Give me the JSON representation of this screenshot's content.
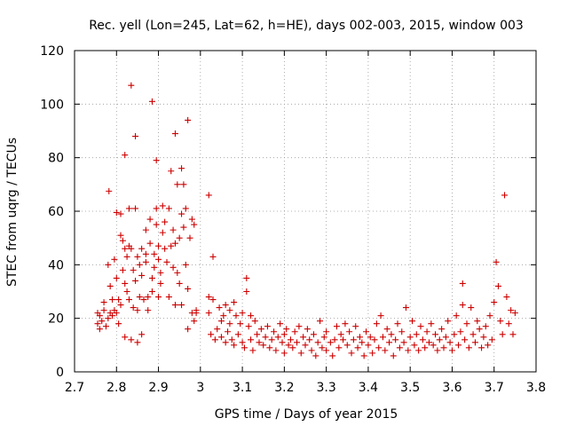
{
  "chart_data": {
    "type": "scatter",
    "title": "Rec. yell (Lon=245, Lat=62, h=HE), days 002-003, 2015, window 003",
    "xlabel": "GPS time / Days of year 2015",
    "ylabel": "STEC from uqrg / TECUs",
    "xlim": [
      2.7,
      3.8
    ],
    "ylim": [
      0,
      120
    ],
    "x_ticks": [
      "2.7",
      "2.8",
      "2.9",
      "3",
      "3.1",
      "3.2",
      "3.3",
      "3.4",
      "3.5",
      "3.6",
      "3.7",
      "3.8"
    ],
    "y_ticks": [
      "0",
      "20",
      "40",
      "60",
      "80",
      "100",
      "120"
    ],
    "grid": true,
    "marker": "+",
    "color": "#cc0000",
    "series": [
      {
        "points": [
          [
            2.755,
            22
          ],
          [
            2.755,
            18
          ],
          [
            2.76,
            16
          ],
          [
            2.76,
            21
          ],
          [
            2.765,
            19
          ],
          [
            2.77,
            23
          ],
          [
            2.77,
            26
          ],
          [
            2.775,
            17
          ],
          [
            2.78,
            20
          ],
          [
            2.78,
            40
          ],
          [
            2.782,
            67.5
          ],
          [
            2.785,
            22
          ],
          [
            2.785,
            32
          ],
          [
            2.79,
            21
          ],
          [
            2.79,
            27
          ],
          [
            2.795,
            23
          ],
          [
            2.795,
            42
          ],
          [
            2.8,
            35
          ],
          [
            2.8,
            59.5
          ],
          [
            2.8,
            22
          ],
          [
            2.805,
            27
          ],
          [
            2.805,
            18
          ],
          [
            2.81,
            51
          ],
          [
            2.81,
            59
          ],
          [
            2.81,
            25
          ],
          [
            2.815,
            38
          ],
          [
            2.815,
            49
          ],
          [
            2.82,
            81
          ],
          [
            2.82,
            46
          ],
          [
            2.82,
            33
          ],
          [
            2.82,
            13
          ],
          [
            2.825,
            30
          ],
          [
            2.825,
            43
          ],
          [
            2.83,
            47
          ],
          [
            2.83,
            61
          ],
          [
            2.83,
            27
          ],
          [
            2.835,
            107
          ],
          [
            2.835,
            12
          ],
          [
            2.835,
            46
          ],
          [
            2.84,
            38
          ],
          [
            2.84,
            24
          ],
          [
            2.845,
            88
          ],
          [
            2.845,
            61
          ],
          [
            2.845,
            34
          ],
          [
            2.85,
            43
          ],
          [
            2.85,
            23
          ],
          [
            2.85,
            11
          ],
          [
            2.855,
            28
          ],
          [
            2.855,
            40
          ],
          [
            2.86,
            46
          ],
          [
            2.86,
            36
          ],
          [
            2.86,
            14
          ],
          [
            2.865,
            27
          ],
          [
            2.87,
            53
          ],
          [
            2.87,
            41
          ],
          [
            2.87,
            44
          ],
          [
            2.875,
            28
          ],
          [
            2.875,
            23
          ],
          [
            2.88,
            57
          ],
          [
            2.88,
            48
          ],
          [
            2.885,
            101
          ],
          [
            2.885,
            35
          ],
          [
            2.885,
            30
          ],
          [
            2.89,
            44
          ],
          [
            2.89,
            39
          ],
          [
            2.895,
            55
          ],
          [
            2.895,
            61
          ],
          [
            2.895,
            79
          ],
          [
            2.9,
            47
          ],
          [
            2.9,
            42
          ],
          [
            2.9,
            28
          ],
          [
            2.905,
            37
          ],
          [
            2.905,
            33
          ],
          [
            2.91,
            62
          ],
          [
            2.91,
            52
          ],
          [
            2.915,
            46
          ],
          [
            2.915,
            56
          ],
          [
            2.92,
            41
          ],
          [
            2.925,
            61
          ],
          [
            2.925,
            28
          ],
          [
            2.93,
            47
          ],
          [
            2.93,
            75
          ],
          [
            2.935,
            53
          ],
          [
            2.935,
            39
          ],
          [
            2.94,
            89
          ],
          [
            2.94,
            48
          ],
          [
            2.94,
            25
          ],
          [
            2.945,
            70
          ],
          [
            2.945,
            37
          ],
          [
            2.95,
            50
          ],
          [
            2.95,
            33
          ],
          [
            2.955,
            76
          ],
          [
            2.955,
            59
          ],
          [
            2.955,
            25
          ],
          [
            2.96,
            70
          ],
          [
            2.96,
            54
          ],
          [
            2.965,
            61
          ],
          [
            2.965,
            40
          ],
          [
            2.97,
            94
          ],
          [
            2.97,
            31
          ],
          [
            2.97,
            16
          ],
          [
            2.975,
            50
          ],
          [
            2.98,
            57
          ],
          [
            2.98,
            22
          ],
          [
            2.985,
            55
          ],
          [
            2.985,
            19
          ],
          [
            2.99,
            22
          ],
          [
            2.99,
            23
          ],
          [
            3.02,
            66
          ],
          [
            3.02,
            28
          ],
          [
            3.02,
            22
          ],
          [
            3.025,
            14
          ],
          [
            3.03,
            43
          ],
          [
            3.03,
            27
          ],
          [
            3.035,
            12
          ],
          [
            3.04,
            16
          ],
          [
            3.045,
            24
          ],
          [
            3.05,
            19
          ],
          [
            3.05,
            13
          ],
          [
            3.055,
            21
          ],
          [
            3.06,
            25
          ],
          [
            3.06,
            11
          ],
          [
            3.065,
            15
          ],
          [
            3.07,
            23
          ],
          [
            3.07,
            18
          ],
          [
            3.075,
            12
          ],
          [
            3.08,
            26
          ],
          [
            3.08,
            10
          ],
          [
            3.085,
            21
          ],
          [
            3.09,
            14
          ],
          [
            3.095,
            18
          ],
          [
            3.1,
            22
          ],
          [
            3.1,
            11
          ],
          [
            3.105,
            9
          ],
          [
            3.11,
            35
          ],
          [
            3.11,
            30
          ],
          [
            3.115,
            17
          ],
          [
            3.12,
            21
          ],
          [
            3.12,
            12
          ],
          [
            3.125,
            8
          ],
          [
            3.13,
            19
          ],
          [
            3.135,
            14
          ],
          [
            3.14,
            11
          ],
          [
            3.145,
            16
          ],
          [
            3.15,
            10
          ],
          [
            3.155,
            13
          ],
          [
            3.16,
            17
          ],
          [
            3.165,
            9
          ],
          [
            3.17,
            12
          ],
          [
            3.175,
            15
          ],
          [
            3.18,
            8
          ],
          [
            3.185,
            13
          ],
          [
            3.19,
            18
          ],
          [
            3.195,
            11
          ],
          [
            3.2,
            14
          ],
          [
            3.2,
            7
          ],
          [
            3.205,
            16
          ],
          [
            3.21,
            10
          ],
          [
            3.215,
            12
          ],
          [
            3.22,
            9
          ],
          [
            3.225,
            15
          ],
          [
            3.23,
            11
          ],
          [
            3.235,
            17
          ],
          [
            3.24,
            7
          ],
          [
            3.245,
            13
          ],
          [
            3.25,
            10
          ],
          [
            3.255,
            16
          ],
          [
            3.26,
            12
          ],
          [
            3.265,
            8
          ],
          [
            3.27,
            14
          ],
          [
            3.275,
            6
          ],
          [
            3.28,
            11
          ],
          [
            3.285,
            19
          ],
          [
            3.29,
            9
          ],
          [
            3.295,
            13
          ],
          [
            3.3,
            15
          ],
          [
            3.3,
            8
          ],
          [
            3.31,
            11
          ],
          [
            3.315,
            6
          ],
          [
            3.32,
            12
          ],
          [
            3.325,
            17
          ],
          [
            3.33,
            9
          ],
          [
            3.335,
            14
          ],
          [
            3.34,
            12
          ],
          [
            3.345,
            18
          ],
          [
            3.35,
            10
          ],
          [
            3.355,
            15
          ],
          [
            3.36,
            7
          ],
          [
            3.365,
            12
          ],
          [
            3.37,
            17
          ],
          [
            3.375,
            9
          ],
          [
            3.38,
            13
          ],
          [
            3.385,
            11
          ],
          [
            3.39,
            6
          ],
          [
            3.395,
            15
          ],
          [
            3.4,
            10
          ],
          [
            3.405,
            13
          ],
          [
            3.41,
            7
          ],
          [
            3.415,
            12
          ],
          [
            3.42,
            18
          ],
          [
            3.425,
            9
          ],
          [
            3.43,
            21
          ],
          [
            3.435,
            13
          ],
          [
            3.44,
            8
          ],
          [
            3.445,
            16
          ],
          [
            3.45,
            11
          ],
          [
            3.455,
            14
          ],
          [
            3.46,
            6
          ],
          [
            3.465,
            12
          ],
          [
            3.47,
            18
          ],
          [
            3.475,
            9
          ],
          [
            3.48,
            15
          ],
          [
            3.485,
            11
          ],
          [
            3.49,
            24
          ],
          [
            3.495,
            8
          ],
          [
            3.5,
            13
          ],
          [
            3.505,
            19
          ],
          [
            3.51,
            10
          ],
          [
            3.515,
            14
          ],
          [
            3.52,
            8
          ],
          [
            3.525,
            17
          ],
          [
            3.53,
            12
          ],
          [
            3.535,
            9
          ],
          [
            3.54,
            15
          ],
          [
            3.545,
            11
          ],
          [
            3.55,
            18
          ],
          [
            3.555,
            10
          ],
          [
            3.56,
            14
          ],
          [
            3.565,
            8
          ],
          [
            3.57,
            12
          ],
          [
            3.575,
            16
          ],
          [
            3.58,
            9
          ],
          [
            3.585,
            13
          ],
          [
            3.59,
            19
          ],
          [
            3.595,
            11
          ],
          [
            3.6,
            8
          ],
          [
            3.605,
            14
          ],
          [
            3.61,
            21
          ],
          [
            3.615,
            10
          ],
          [
            3.62,
            15
          ],
          [
            3.625,
            33
          ],
          [
            3.625,
            25
          ],
          [
            3.63,
            12
          ],
          [
            3.635,
            18
          ],
          [
            3.64,
            9
          ],
          [
            3.645,
            24
          ],
          [
            3.65,
            14
          ],
          [
            3.655,
            11
          ],
          [
            3.66,
            19
          ],
          [
            3.665,
            16
          ],
          [
            3.67,
            9
          ],
          [
            3.675,
            13
          ],
          [
            3.68,
            17
          ],
          [
            3.685,
            10
          ],
          [
            3.69,
            21
          ],
          [
            3.695,
            12
          ],
          [
            3.7,
            26
          ],
          [
            3.705,
            41
          ],
          [
            3.71,
            32
          ],
          [
            3.715,
            19
          ],
          [
            3.72,
            14
          ],
          [
            3.725,
            66
          ],
          [
            3.73,
            28
          ],
          [
            3.735,
            18
          ],
          [
            3.74,
            23
          ],
          [
            3.745,
            14
          ],
          [
            3.75,
            22
          ]
        ]
      }
    ]
  }
}
